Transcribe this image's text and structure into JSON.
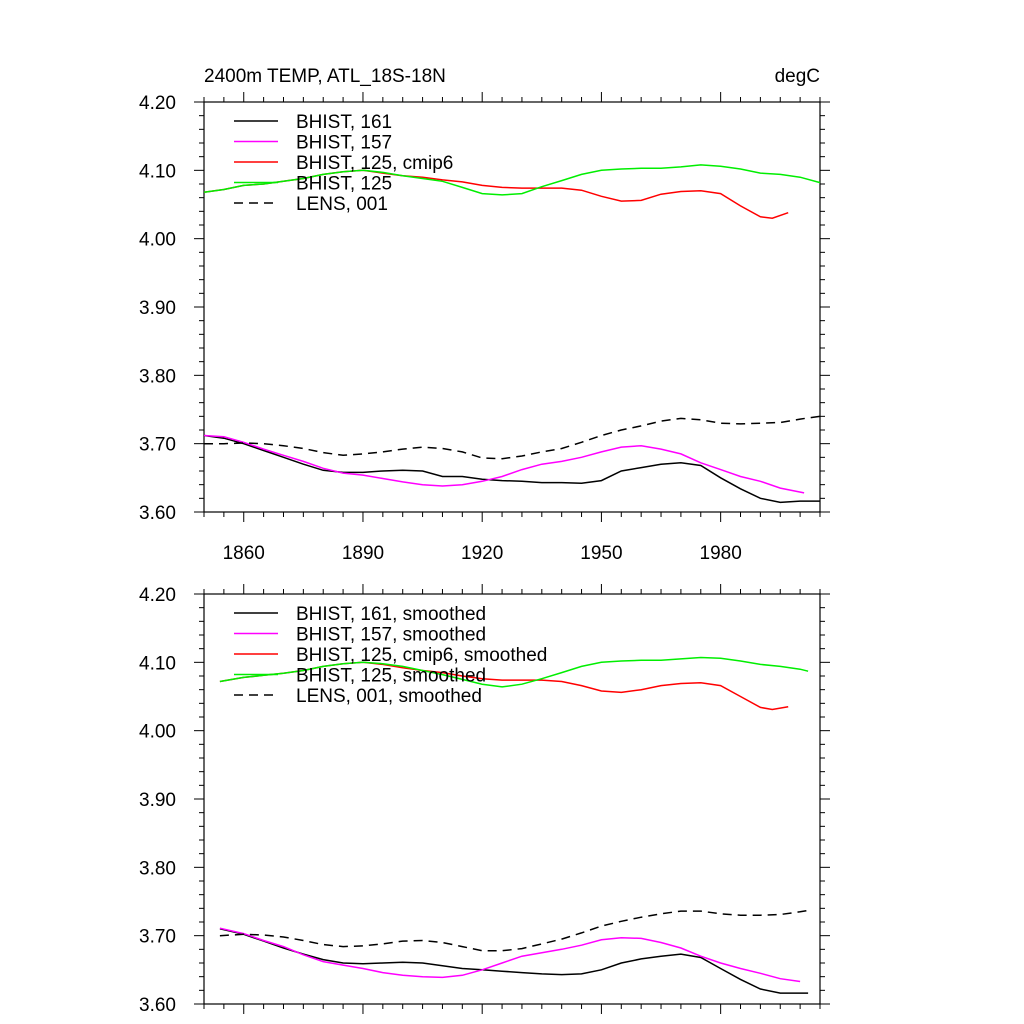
{
  "figure": {
    "title_left": "2400m TEMP, ATL_18S-18N",
    "title_right": "degC"
  },
  "chart_data": [
    {
      "type": "line",
      "panel": "top",
      "xlim": [
        1850,
        2005
      ],
      "ylim": [
        3.6,
        4.2
      ],
      "x_ticks": [
        1860,
        1890,
        1920,
        1950,
        1980
      ],
      "x_tick_labels": [
        "1860",
        "1890",
        "1920",
        "1950",
        "1980"
      ],
      "y_ticks": [
        3.6,
        3.7,
        3.8,
        3.9,
        4.0,
        4.1,
        4.2
      ],
      "y_tick_labels": [
        "3.60",
        "3.70",
        "3.80",
        "3.90",
        "4.00",
        "4.10",
        "4.20"
      ],
      "legend_placement": "top-left",
      "series": [
        {
          "name": "BHIST, 161",
          "color": "#000000",
          "dash": "solid",
          "x": [
            1850,
            1855,
            1860,
            1865,
            1870,
            1875,
            1880,
            1885,
            1890,
            1895,
            1900,
            1905,
            1910,
            1915,
            1920,
            1925,
            1930,
            1935,
            1940,
            1945,
            1950,
            1955,
            1960,
            1965,
            1970,
            1975,
            1980,
            1985,
            1990,
            1995,
            2000,
            2005
          ],
          "y": [
            3.712,
            3.708,
            3.7,
            3.69,
            3.68,
            3.67,
            3.661,
            3.658,
            3.658,
            3.66,
            3.661,
            3.66,
            3.652,
            3.652,
            3.648,
            3.646,
            3.645,
            3.643,
            3.643,
            3.642,
            3.646,
            3.66,
            3.665,
            3.67,
            3.672,
            3.668,
            3.65,
            3.634,
            3.62,
            3.614,
            3.616,
            3.616
          ]
        },
        {
          "name": "BHIST, 157",
          "color": "#ff00ff",
          "dash": "solid",
          "x": [
            1850,
            1855,
            1860,
            1865,
            1870,
            1875,
            1880,
            1885,
            1890,
            1895,
            1900,
            1905,
            1910,
            1915,
            1920,
            1925,
            1930,
            1935,
            1940,
            1945,
            1950,
            1955,
            1960,
            1965,
            1970,
            1975,
            1980,
            1985,
            1990,
            1995,
            2001
          ],
          "y": [
            3.712,
            3.71,
            3.702,
            3.692,
            3.683,
            3.674,
            3.664,
            3.657,
            3.654,
            3.649,
            3.644,
            3.64,
            3.638,
            3.64,
            3.645,
            3.652,
            3.662,
            3.67,
            3.674,
            3.68,
            3.688,
            3.695,
            3.697,
            3.692,
            3.685,
            3.672,
            3.662,
            3.652,
            3.645,
            3.635,
            3.628
          ]
        },
        {
          "name": "BHIST, 125, cmip6",
          "color": "#ff0000",
          "dash": "solid",
          "x": [
            1850,
            1855,
            1860,
            1865,
            1870,
            1875,
            1880,
            1885,
            1890,
            1895,
            1900,
            1905,
            1910,
            1915,
            1920,
            1925,
            1930,
            1935,
            1940,
            1945,
            1950,
            1955,
            1960,
            1965,
            1970,
            1975,
            1980,
            1985,
            1990,
            1993,
            1997
          ],
          "y": [
            4.068,
            4.072,
            4.078,
            4.08,
            4.084,
            4.088,
            4.094,
            4.098,
            4.1,
            4.096,
            4.092,
            4.09,
            4.086,
            4.083,
            4.078,
            4.075,
            4.074,
            4.074,
            4.074,
            4.071,
            4.062,
            4.055,
            4.056,
            4.065,
            4.069,
            4.07,
            4.066,
            4.048,
            4.032,
            4.03,
            4.038
          ]
        },
        {
          "name": "BHIST, 125",
          "color": "#00ee00",
          "dash": "solid",
          "x": [
            1850,
            1855,
            1860,
            1865,
            1870,
            1875,
            1880,
            1885,
            1890,
            1895,
            1900,
            1905,
            1910,
            1915,
            1920,
            1925,
            1930,
            1935,
            1940,
            1945,
            1950,
            1955,
            1960,
            1965,
            1970,
            1975,
            1980,
            1985,
            1990,
            1995,
            2000,
            2005
          ],
          "y": [
            4.068,
            4.072,
            4.078,
            4.08,
            4.084,
            4.088,
            4.094,
            4.098,
            4.1,
            4.097,
            4.092,
            4.088,
            4.084,
            4.075,
            4.066,
            4.064,
            4.066,
            4.076,
            4.085,
            4.094,
            4.1,
            4.102,
            4.103,
            4.103,
            4.105,
            4.108,
            4.106,
            4.102,
            4.096,
            4.094,
            4.09,
            4.082
          ]
        },
        {
          "name": "LENS, 001",
          "color": "#000000",
          "dash": "dashed",
          "x": [
            1850,
            1855,
            1860,
            1865,
            1870,
            1875,
            1880,
            1885,
            1890,
            1895,
            1900,
            1905,
            1910,
            1915,
            1920,
            1925,
            1930,
            1935,
            1940,
            1945,
            1950,
            1955,
            1960,
            1965,
            1970,
            1975,
            1980,
            1985,
            1990,
            1995,
            2000,
            2005
          ],
          "y": [
            3.7,
            3.7,
            3.701,
            3.7,
            3.697,
            3.693,
            3.687,
            3.683,
            3.685,
            3.688,
            3.692,
            3.695,
            3.693,
            3.688,
            3.679,
            3.678,
            3.682,
            3.688,
            3.693,
            3.702,
            3.712,
            3.72,
            3.726,
            3.733,
            3.737,
            3.735,
            3.73,
            3.729,
            3.73,
            3.731,
            3.736,
            3.74
          ]
        }
      ]
    },
    {
      "type": "line",
      "panel": "bottom",
      "xlim": [
        1850,
        2005
      ],
      "ylim": [
        3.6,
        4.2
      ],
      "x_ticks": [
        1860,
        1890,
        1920,
        1950,
        1980
      ],
      "y_ticks": [
        3.6,
        3.7,
        3.8,
        3.9,
        4.0,
        4.1,
        4.2
      ],
      "y_tick_labels": [
        "3.60",
        "3.70",
        "3.80",
        "3.90",
        "4.00",
        "4.10",
        "4.20"
      ],
      "legend_placement": "top-left",
      "series": [
        {
          "name": "BHIST, 161, smoothed",
          "color": "#000000",
          "dash": "solid",
          "x": [
            1854,
            1860,
            1865,
            1870,
            1875,
            1880,
            1885,
            1890,
            1895,
            1900,
            1905,
            1910,
            1915,
            1920,
            1925,
            1930,
            1935,
            1940,
            1945,
            1950,
            1955,
            1960,
            1965,
            1970,
            1975,
            1980,
            1985,
            1990,
            1995,
            2000,
            2002
          ],
          "y": [
            3.71,
            3.702,
            3.692,
            3.682,
            3.673,
            3.665,
            3.66,
            3.659,
            3.66,
            3.661,
            3.66,
            3.656,
            3.652,
            3.65,
            3.648,
            3.646,
            3.644,
            3.643,
            3.644,
            3.65,
            3.66,
            3.666,
            3.67,
            3.673,
            3.668,
            3.652,
            3.636,
            3.622,
            3.616,
            3.616,
            3.616
          ]
        },
        {
          "name": "BHIST, 157, smoothed",
          "color": "#ff00ff",
          "dash": "solid",
          "x": [
            1854,
            1860,
            1865,
            1870,
            1875,
            1880,
            1885,
            1890,
            1895,
            1900,
            1905,
            1910,
            1915,
            1920,
            1925,
            1930,
            1935,
            1940,
            1945,
            1950,
            1955,
            1960,
            1965,
            1970,
            1975,
            1980,
            1985,
            1990,
            1995,
            2000
          ],
          "y": [
            3.711,
            3.703,
            3.693,
            3.684,
            3.672,
            3.662,
            3.657,
            3.652,
            3.646,
            3.642,
            3.64,
            3.639,
            3.642,
            3.65,
            3.66,
            3.67,
            3.675,
            3.68,
            3.686,
            3.694,
            3.697,
            3.696,
            3.69,
            3.682,
            3.67,
            3.66,
            3.652,
            3.645,
            3.637,
            3.633
          ]
        },
        {
          "name": "BHIST, 125, cmip6, smoothed",
          "color": "#ff0000",
          "dash": "solid",
          "x": [
            1854,
            1860,
            1865,
            1870,
            1875,
            1880,
            1885,
            1890,
            1895,
            1900,
            1905,
            1910,
            1915,
            1920,
            1925,
            1930,
            1935,
            1940,
            1945,
            1950,
            1955,
            1960,
            1965,
            1970,
            1975,
            1980,
            1985,
            1990,
            1993,
            1997
          ],
          "y": [
            4.072,
            4.078,
            4.081,
            4.084,
            4.088,
            4.094,
            4.098,
            4.1,
            4.097,
            4.092,
            4.088,
            4.085,
            4.08,
            4.076,
            4.074,
            4.074,
            4.074,
            4.072,
            4.066,
            4.058,
            4.056,
            4.06,
            4.066,
            4.069,
            4.07,
            4.066,
            4.05,
            4.034,
            4.031,
            4.035
          ]
        },
        {
          "name": "BHIST, 125, smoothed",
          "color": "#00ee00",
          "dash": "solid",
          "x": [
            1854,
            1860,
            1865,
            1870,
            1875,
            1880,
            1885,
            1890,
            1895,
            1900,
            1905,
            1910,
            1915,
            1920,
            1925,
            1930,
            1935,
            1940,
            1945,
            1950,
            1955,
            1960,
            1965,
            1970,
            1975,
            1980,
            1985,
            1990,
            1995,
            2000,
            2002
          ],
          "y": [
            4.072,
            4.078,
            4.081,
            4.084,
            4.088,
            4.094,
            4.098,
            4.1,
            4.098,
            4.094,
            4.088,
            4.082,
            4.075,
            4.068,
            4.064,
            4.068,
            4.076,
            4.085,
            4.094,
            4.1,
            4.102,
            4.103,
            4.103,
            4.105,
            4.107,
            4.106,
            4.102,
            4.097,
            4.094,
            4.09,
            4.087
          ]
        },
        {
          "name": "LENS, 001, smoothed",
          "color": "#000000",
          "dash": "dashed",
          "x": [
            1854,
            1860,
            1865,
            1870,
            1875,
            1880,
            1885,
            1890,
            1895,
            1900,
            1905,
            1910,
            1915,
            1920,
            1925,
            1930,
            1935,
            1940,
            1945,
            1950,
            1955,
            1960,
            1965,
            1970,
            1975,
            1980,
            1985,
            1990,
            1995,
            2000,
            2002
          ],
          "y": [
            3.7,
            3.702,
            3.701,
            3.698,
            3.693,
            3.687,
            3.684,
            3.685,
            3.688,
            3.692,
            3.693,
            3.69,
            3.684,
            3.678,
            3.678,
            3.681,
            3.688,
            3.695,
            3.704,
            3.714,
            3.721,
            3.727,
            3.732,
            3.736,
            3.736,
            3.732,
            3.73,
            3.73,
            3.731,
            3.735,
            3.737
          ]
        }
      ]
    }
  ]
}
